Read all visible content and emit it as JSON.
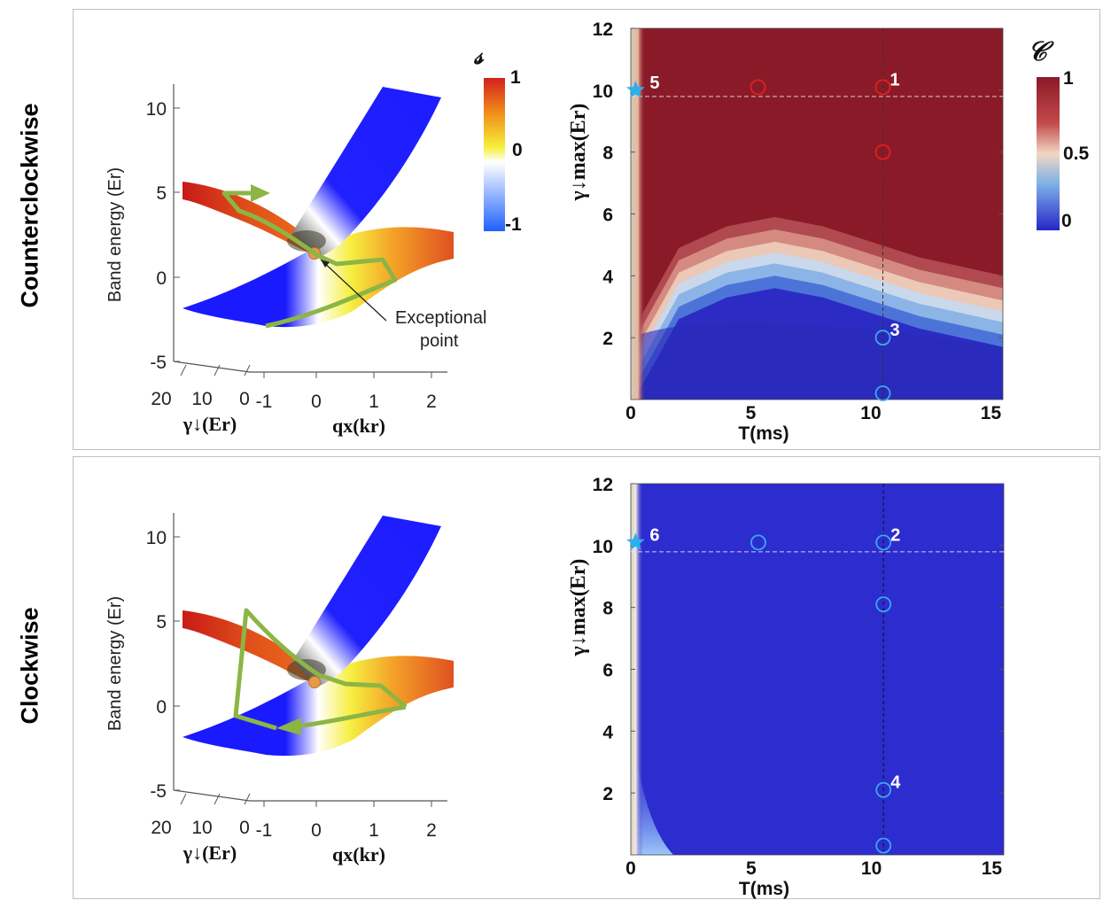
{
  "rows": {
    "top_label": "Counterclockwise",
    "bottom_label": "Clockwise"
  },
  "band_plot": {
    "z_label": "Band energy (Er)",
    "z_ticks": [
      "10",
      "5",
      "0",
      "-5"
    ],
    "gamma_label": "γ↓(Er)",
    "gamma_ticks": [
      "20",
      "10",
      "0"
    ],
    "q_label": "qx(kr)",
    "q_ticks": [
      "-1",
      "0",
      "1",
      "2"
    ],
    "ep_label_line1": "Exceptional",
    "ep_label_line2": "point",
    "colorbar_symbol": "𝓈",
    "colorbar_ticks": [
      "1",
      "0",
      "-1"
    ],
    "colors": {
      "red": "#d42020",
      "yellow": "#f6ef3a",
      "white": "#ffffff",
      "blue": "#1f1fff",
      "path": "#8cb545"
    }
  },
  "chart_data": [
    {
      "type": "heatmap",
      "title": "",
      "xlabel": "T(ms)",
      "ylabel": "γ↓max(Er)",
      "xlim": [
        0,
        15.5
      ],
      "ylim": [
        0,
        12
      ],
      "x_ticks": [
        "0",
        "5",
        "10",
        "15"
      ],
      "y_ticks": [
        "2",
        "4",
        "6",
        "8",
        "10",
        "12"
      ],
      "colorbar_symbol": "𝒞",
      "colorbar_ticks": [
        "1",
        "0.5",
        "0"
      ],
      "colorbar_colors": [
        "#8b1a28",
        "#f2d6c4",
        "#2626c6"
      ],
      "transition_gamma_vs_T": [
        [
          0.5,
          1.5
        ],
        [
          2,
          3.6
        ],
        [
          4,
          4.3
        ],
        [
          6,
          4.6
        ],
        [
          8,
          4.3
        ],
        [
          10,
          3.8
        ],
        [
          12,
          3.3
        ],
        [
          15.5,
          2.7
        ]
      ],
      "guide_lines": {
        "T_ms": 10.5,
        "gamma": 9.8
      },
      "markers": [
        {
          "T": 5.3,
          "g": 10.1,
          "shape": "circle",
          "color": "#e02020",
          "label": ""
        },
        {
          "T": 10.5,
          "g": 10.1,
          "shape": "circle",
          "color": "#e02020",
          "label": "1"
        },
        {
          "T": 10.5,
          "g": 8.0,
          "shape": "circle",
          "color": "#e02020",
          "label": ""
        },
        {
          "T": 10.5,
          "g": 2.0,
          "shape": "circle",
          "color": "#3aa9f0",
          "label": "3"
        },
        {
          "T": 10.5,
          "g": 0.2,
          "shape": "circle",
          "color": "#3aa9f0",
          "label": ""
        },
        {
          "T": 0.2,
          "g": 10.0,
          "shape": "star",
          "color": "#2ab0f0",
          "label": "5"
        }
      ]
    },
    {
      "type": "heatmap",
      "title": "",
      "xlabel": "T(ms)",
      "ylabel": "γ↓max(Er)",
      "xlim": [
        0,
        15.5
      ],
      "ylim": [
        0,
        12
      ],
      "x_ticks": [
        "0",
        "5",
        "10",
        "15"
      ],
      "y_ticks": [
        "2",
        "4",
        "6",
        "8",
        "10",
        "12"
      ],
      "uniform_value": 0,
      "guide_lines": {
        "T_ms": 10.5,
        "gamma": 9.8
      },
      "markers": [
        {
          "T": 5.3,
          "g": 10.1,
          "shape": "circle",
          "color": "#3aa9f0",
          "label": ""
        },
        {
          "T": 10.5,
          "g": 10.1,
          "shape": "circle",
          "color": "#3aa9f0",
          "label": "2"
        },
        {
          "T": 10.5,
          "g": 8.1,
          "shape": "circle",
          "color": "#3aa9f0",
          "label": ""
        },
        {
          "T": 10.5,
          "g": 2.1,
          "shape": "circle",
          "color": "#3aa9f0",
          "label": "4"
        },
        {
          "T": 10.5,
          "g": 0.3,
          "shape": "circle",
          "color": "#3aa9f0",
          "label": ""
        },
        {
          "T": 0.2,
          "g": 10.1,
          "shape": "star",
          "color": "#2ab0f0",
          "label": "6"
        }
      ]
    }
  ]
}
